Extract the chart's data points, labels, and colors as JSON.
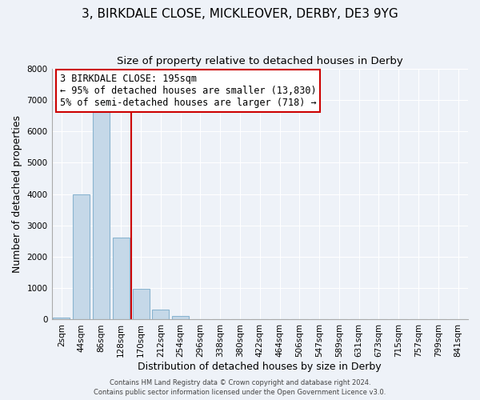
{
  "title": "3, BIRKDALE CLOSE, MICKLEOVER, DERBY, DE3 9YG",
  "subtitle": "Size of property relative to detached houses in Derby",
  "xlabel": "Distribution of detached houses by size in Derby",
  "ylabel": "Number of detached properties",
  "bar_labels": [
    "2sqm",
    "44sqm",
    "86sqm",
    "128sqm",
    "170sqm",
    "212sqm",
    "254sqm",
    "296sqm",
    "338sqm",
    "380sqm",
    "422sqm",
    "464sqm",
    "506sqm",
    "547sqm",
    "589sqm",
    "631sqm",
    "673sqm",
    "715sqm",
    "757sqm",
    "799sqm",
    "841sqm"
  ],
  "bar_values": [
    60,
    4000,
    6600,
    2600,
    980,
    330,
    120,
    0,
    0,
    0,
    0,
    0,
    0,
    0,
    0,
    0,
    0,
    0,
    0,
    0,
    0
  ],
  "bar_color": "#c5d8e8",
  "bar_edge_color": "#8ab4d0",
  "ylim": [
    0,
    8000
  ],
  "yticks": [
    0,
    1000,
    2000,
    3000,
    4000,
    5000,
    6000,
    7000,
    8000
  ],
  "vline_x": 3.5,
  "vline_color": "#cc0000",
  "annotation_line1": "3 BIRKDALE CLOSE: 195sqm",
  "annotation_line2": "← 95% of detached houses are smaller (13,830)",
  "annotation_line3": "5% of semi-detached houses are larger (718) →",
  "annotation_box_color": "#ffffff",
  "annotation_box_edge": "#cc0000",
  "footer1": "Contains HM Land Registry data © Crown copyright and database right 2024.",
  "footer2": "Contains public sector information licensed under the Open Government Licence v3.0.",
  "background_color": "#eef2f8",
  "grid_color": "#ffffff",
  "title_fontsize": 11,
  "subtitle_fontsize": 9.5,
  "label_fontsize": 9,
  "tick_fontsize": 7.5,
  "annotation_fontsize": 8.5,
  "footer_fontsize": 6
}
